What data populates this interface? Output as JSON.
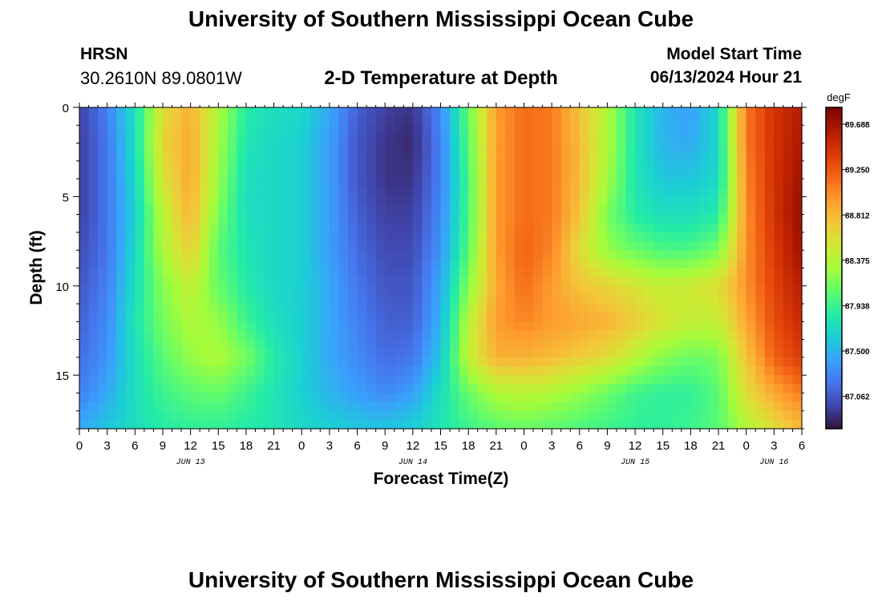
{
  "header": {
    "title": "University of Southern Mississippi Ocean Cube",
    "station": "HRSN",
    "coords": "30.2610N  89.0801W",
    "subtitle": "2-D Temperature at Depth",
    "start_label": "Model Start Time",
    "start_value": "06/13/2024 Hour 21"
  },
  "footer": {
    "title": "University of Southern Mississippi Ocean Cube"
  },
  "chart_data": {
    "type": "heatmap",
    "title": "2-D Temperature at Depth",
    "xlabel": "Forecast Time(Z)",
    "ylabel": "Depth (ft)",
    "x_range_hours": [
      0,
      78
    ],
    "x_tick_labels": [
      "0",
      "3",
      "6",
      "9",
      "12",
      "15",
      "18",
      "21",
      "0",
      "3",
      "6",
      "9",
      "12",
      "15",
      "18",
      "21",
      "0",
      "3",
      "6",
      "9",
      "12",
      "15",
      "18",
      "21",
      "0",
      "3",
      "6"
    ],
    "date_labels": [
      {
        "label": "JUN 13",
        "hour": 12
      },
      {
        "label": "JUN 14",
        "hour": 36
      },
      {
        "label": "JUN 15",
        "hour": 60
      },
      {
        "label": "JUN 16",
        "hour": 75
      }
    ],
    "ylim": [
      0,
      18
    ],
    "y_ticks": [
      0,
      5,
      10,
      15
    ],
    "colorbar": {
      "unit": "degF",
      "range": [
        86.75,
        89.85
      ],
      "tick_labels": [
        "89.688",
        "89.250",
        "88.812",
        "88.375",
        "87.938",
        "87.500",
        "87.062"
      ],
      "stops": [
        "#30123b",
        "#4145ab",
        "#4675ed",
        "#39a2fc",
        "#1bcfd4",
        "#24eca6",
        "#61fc6c",
        "#a4fc3b",
        "#d1e834",
        "#f3c63a",
        "#fe9b2d",
        "#f36315",
        "#d93806",
        "#b11901",
        "#7a0403"
      ]
    },
    "sample_depths_ft": [
      0,
      2,
      4,
      6,
      8,
      10,
      12,
      14,
      16,
      18
    ],
    "sample_hours": [
      0,
      3,
      6,
      9,
      12,
      15,
      18,
      21,
      24,
      27,
      30,
      33,
      36,
      39,
      42,
      45,
      48,
      51,
      54,
      57,
      60,
      63,
      66,
      69,
      72,
      75,
      78
    ],
    "values_degF": [
      [
        86.95,
        87.25,
        87.75,
        88.6,
        88.85,
        88.35,
        87.85,
        87.75,
        87.7,
        87.45,
        87.1,
        86.95,
        86.9,
        87.3,
        88.1,
        88.95,
        89.15,
        89.1,
        88.75,
        88.35,
        87.8,
        87.5,
        87.4,
        87.7,
        89.1,
        89.45,
        89.6
      ],
      [
        86.95,
        87.2,
        87.75,
        88.65,
        88.9,
        88.3,
        87.8,
        87.7,
        87.65,
        87.4,
        87.05,
        86.9,
        86.85,
        87.25,
        88.05,
        88.95,
        89.15,
        89.1,
        88.8,
        88.35,
        87.8,
        87.5,
        87.45,
        87.7,
        89.1,
        89.45,
        89.65
      ],
      [
        86.95,
        87.2,
        87.7,
        88.55,
        88.9,
        88.25,
        87.75,
        87.7,
        87.65,
        87.4,
        87.05,
        86.9,
        86.9,
        87.25,
        88.0,
        88.95,
        89.15,
        89.1,
        88.8,
        88.3,
        87.8,
        87.6,
        87.6,
        87.7,
        89.05,
        89.45,
        89.7
      ],
      [
        86.95,
        87.2,
        87.65,
        88.4,
        88.85,
        88.15,
        87.75,
        87.7,
        87.65,
        87.4,
        87.1,
        86.95,
        86.95,
        87.3,
        88.0,
        88.95,
        89.15,
        89.1,
        88.75,
        88.15,
        87.85,
        87.75,
        87.75,
        87.85,
        89.0,
        89.45,
        89.75
      ],
      [
        87.0,
        87.2,
        87.7,
        88.35,
        88.7,
        88.05,
        87.8,
        87.7,
        87.65,
        87.4,
        87.15,
        87.0,
        87.0,
        87.35,
        88.05,
        88.95,
        89.2,
        89.05,
        88.6,
        88.25,
        88.1,
        88.0,
        88.0,
        88.15,
        89.0,
        89.4,
        89.7
      ],
      [
        87.05,
        87.25,
        87.75,
        88.2,
        88.45,
        88.1,
        87.85,
        87.7,
        87.65,
        87.45,
        87.2,
        87.05,
        87.05,
        87.45,
        88.2,
        88.9,
        89.15,
        88.95,
        88.75,
        88.65,
        88.55,
        88.45,
        88.5,
        88.6,
        89.0,
        89.35,
        89.6
      ],
      [
        87.1,
        87.3,
        87.8,
        88.15,
        88.35,
        88.25,
        87.95,
        87.75,
        87.65,
        87.45,
        87.25,
        87.1,
        87.1,
        87.5,
        88.4,
        88.95,
        89.05,
        88.95,
        88.9,
        88.85,
        88.7,
        88.55,
        88.45,
        88.45,
        88.9,
        89.3,
        89.5
      ],
      [
        87.15,
        87.35,
        87.75,
        88.05,
        88.25,
        88.35,
        88.15,
        87.85,
        87.65,
        87.45,
        87.3,
        87.15,
        87.2,
        87.6,
        88.45,
        88.85,
        88.85,
        88.8,
        88.7,
        88.6,
        88.4,
        88.2,
        88.1,
        88.15,
        88.75,
        89.2,
        89.4
      ],
      [
        87.25,
        87.45,
        87.75,
        87.95,
        88.05,
        88.1,
        87.95,
        87.8,
        87.65,
        87.5,
        87.4,
        87.3,
        87.4,
        87.75,
        88.1,
        88.35,
        88.4,
        88.35,
        88.25,
        88.1,
        87.95,
        87.9,
        87.9,
        88.05,
        88.6,
        88.9,
        89.1
      ],
      [
        87.45,
        87.6,
        87.75,
        87.85,
        87.9,
        87.9,
        87.85,
        87.8,
        87.7,
        87.65,
        87.6,
        87.6,
        87.65,
        87.8,
        87.95,
        88.05,
        88.1,
        88.05,
        88.0,
        87.95,
        87.9,
        87.9,
        87.95,
        88.05,
        88.35,
        88.6,
        88.8
      ]
    ]
  }
}
